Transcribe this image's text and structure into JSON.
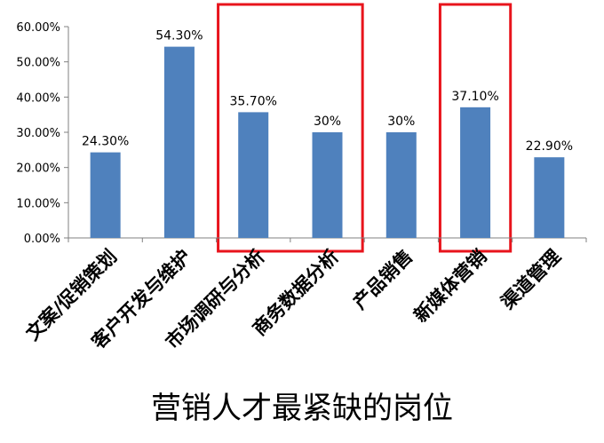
{
  "chart_data": {
    "type": "bar",
    "title": "营销人才最紧缺的岗位",
    "categories": [
      "文案/促销策划",
      "客户开发与维护",
      "市场调研与分析",
      "商务数据分析",
      "产品销售",
      "新媒体营销",
      "渠道管理"
    ],
    "values": [
      24.3,
      54.3,
      35.7,
      30,
      30,
      37.1,
      22.9
    ],
    "data_labels": [
      "24.30%",
      "54.30%",
      "35.70%",
      "30%",
      "30%",
      "37.10%",
      "22.90%"
    ],
    "y_ticks": [
      "0.00%",
      "10.00%",
      "20.00%",
      "30.00%",
      "40.00%",
      "50.00%",
      "60.00%"
    ],
    "ylim": [
      0,
      60
    ],
    "xlabel": "",
    "ylabel": "",
    "grid": false,
    "bar_color": "#4F81BD",
    "highlight_color": "#E8141C",
    "highlight_groups": [
      [
        2,
        3
      ],
      [
        5
      ]
    ]
  }
}
